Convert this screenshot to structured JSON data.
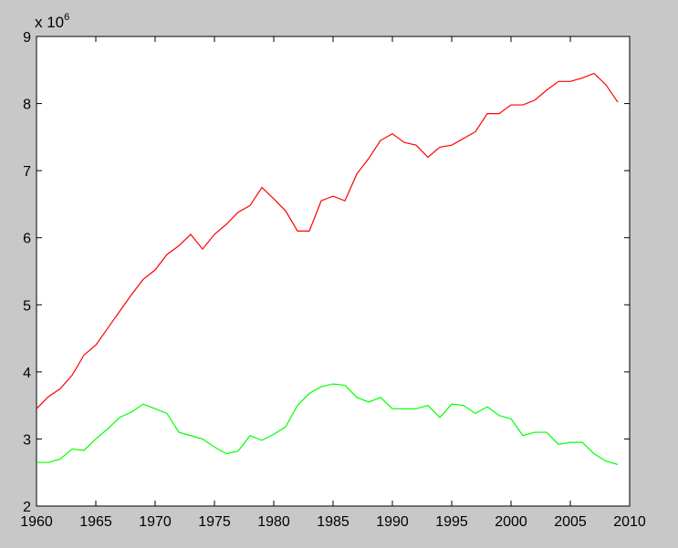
{
  "chart_data": {
    "type": "line",
    "title": "",
    "xlabel": "",
    "ylabel": "",
    "y_multiplier_label": {
      "base": "x 10",
      "exponent": "6"
    },
    "xlim": [
      1960,
      2010
    ],
    "ylim": [
      2,
      9
    ],
    "xticks": [
      "1960",
      "1965",
      "1970",
      "1975",
      "1980",
      "1985",
      "1990",
      "1995",
      "2000",
      "2005",
      "2010"
    ],
    "yticks": [
      "2",
      "3",
      "4",
      "5",
      "6",
      "7",
      "8",
      "9"
    ],
    "grid": false,
    "legend": "none",
    "x": [
      1960,
      1961,
      1962,
      1963,
      1964,
      1965,
      1966,
      1967,
      1968,
      1969,
      1970,
      1971,
      1972,
      1973,
      1974,
      1975,
      1976,
      1977,
      1978,
      1979,
      1980,
      1981,
      1982,
      1983,
      1984,
      1985,
      1986,
      1987,
      1988,
      1989,
      1990,
      1991,
      1992,
      1993,
      1994,
      1995,
      1996,
      1997,
      1998,
      1999,
      2000,
      2001,
      2002,
      2003,
      2004,
      2005,
      2006,
      2007,
      2008,
      2009
    ],
    "series": [
      {
        "color": "#ff0000",
        "values": [
          3.45,
          3.63,
          3.75,
          3.95,
          4.25,
          4.4,
          4.65,
          4.9,
          5.15,
          5.38,
          5.52,
          5.75,
          5.88,
          6.05,
          5.83,
          6.05,
          6.2,
          6.38,
          6.48,
          6.75,
          6.58,
          6.4,
          6.1,
          6.1,
          6.55,
          6.62,
          6.55,
          6.95,
          7.18,
          7.45,
          7.55,
          7.42,
          7.38,
          7.2,
          7.35,
          7.38,
          7.48,
          7.58,
          7.85,
          7.85,
          7.98,
          7.98,
          8.05,
          8.2,
          8.33,
          8.33,
          8.38,
          8.45,
          8.28,
          8.02
        ]
      },
      {
        "color": "#00ff00",
        "values": [
          2.65,
          2.65,
          2.7,
          2.85,
          2.83,
          3.0,
          3.15,
          3.32,
          3.4,
          3.52,
          3.45,
          3.38,
          3.1,
          3.05,
          3.0,
          2.88,
          2.78,
          2.82,
          3.05,
          2.98,
          3.07,
          3.18,
          3.5,
          3.68,
          3.78,
          3.82,
          3.8,
          3.62,
          3.55,
          3.62,
          3.45,
          3.45,
          3.45,
          3.5,
          3.32,
          3.52,
          3.5,
          3.38,
          3.48,
          3.35,
          3.3,
          3.05,
          3.1,
          3.1,
          2.92,
          2.95,
          2.95,
          2.78,
          2.67,
          2.62
        ]
      }
    ]
  }
}
